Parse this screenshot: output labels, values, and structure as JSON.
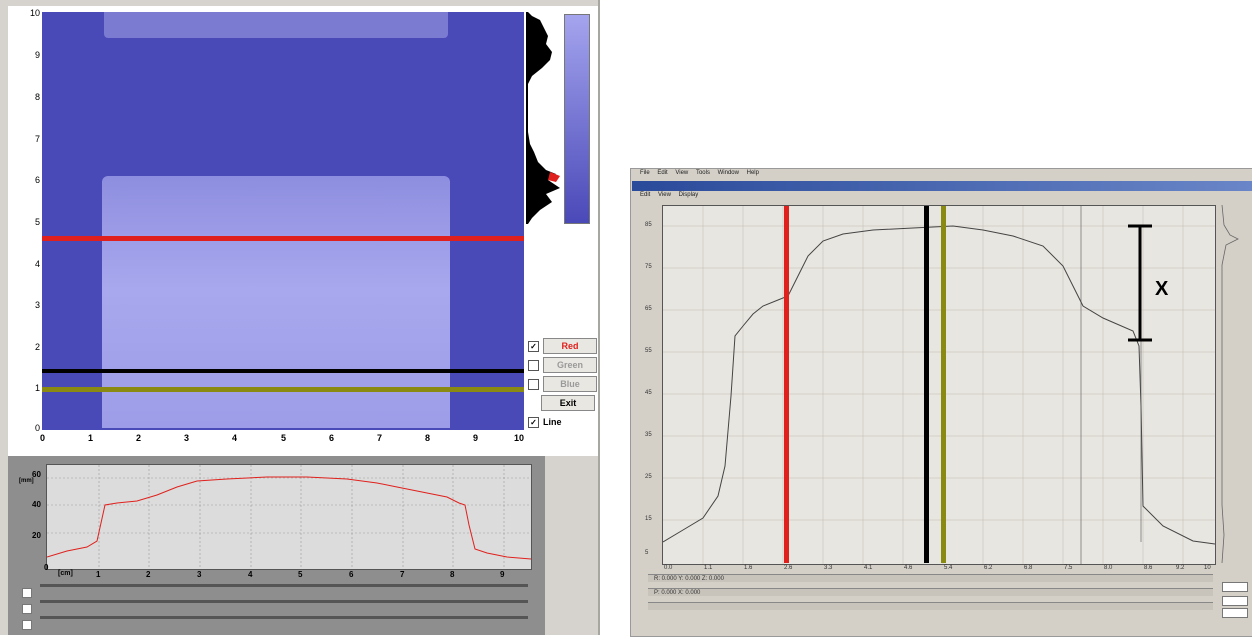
{
  "left_window": {
    "image_view": {
      "y_ticks": [
        "10",
        "9",
        "8",
        "7",
        "6",
        "5",
        "4",
        "3",
        "2",
        "1",
        "0"
      ],
      "x_ticks": [
        "0",
        "1",
        "2",
        "3",
        "4",
        "5",
        "6",
        "7",
        "8",
        "9",
        "10"
      ],
      "line_colors": {
        "red": "#e0201c",
        "black": "#000000",
        "olive": "#8a8a12"
      }
    },
    "channel_buttons": [
      {
        "label": "Red",
        "checked": true,
        "color": "#e0201c"
      },
      {
        "label": "Green",
        "checked": false,
        "color": "#9a9a9a"
      },
      {
        "label": "Blue",
        "checked": false,
        "color": "#9a9a9a"
      },
      {
        "label": "Exit",
        "checked": null,
        "color": "#000000"
      },
      {
        "label": "Line",
        "checked": true,
        "color": "#000000"
      }
    ],
    "profile_plot": {
      "y_ticks": [
        "60",
        "40",
        "20",
        "0"
      ],
      "y_unit": "[mm]",
      "x_ticks": [
        "1",
        "2",
        "3",
        "4",
        "5",
        "6",
        "7",
        "8",
        "9"
      ],
      "x_unit": "[cm]"
    }
  },
  "right_window": {
    "menu_items": [
      "File",
      "Edit",
      "View",
      "Tools",
      "Window",
      "Help"
    ],
    "sub_menu": [
      "Edit",
      "View",
      "Display"
    ],
    "plot": {
      "y_ticks": [
        "85",
        "75",
        "65",
        "55",
        "45",
        "35",
        "25",
        "15",
        "5"
      ],
      "x_ticks": [
        "0.0",
        "1.1",
        "1.6",
        "2.6",
        "3.3",
        "4.1",
        "4.6",
        "5.4",
        "6.2",
        "6.8",
        "7.5",
        "8.0",
        "8.6",
        "9.2",
        "10"
      ],
      "marker_label": "X",
      "line_colors": {
        "red": "#e0201c",
        "black": "#000000",
        "olive": "#8a8a12"
      }
    },
    "status_rows": [
      "R: 0.000   Y: 0.000   Z: 0.000",
      "P: 0.000   X: 0.000",
      ""
    ]
  }
}
